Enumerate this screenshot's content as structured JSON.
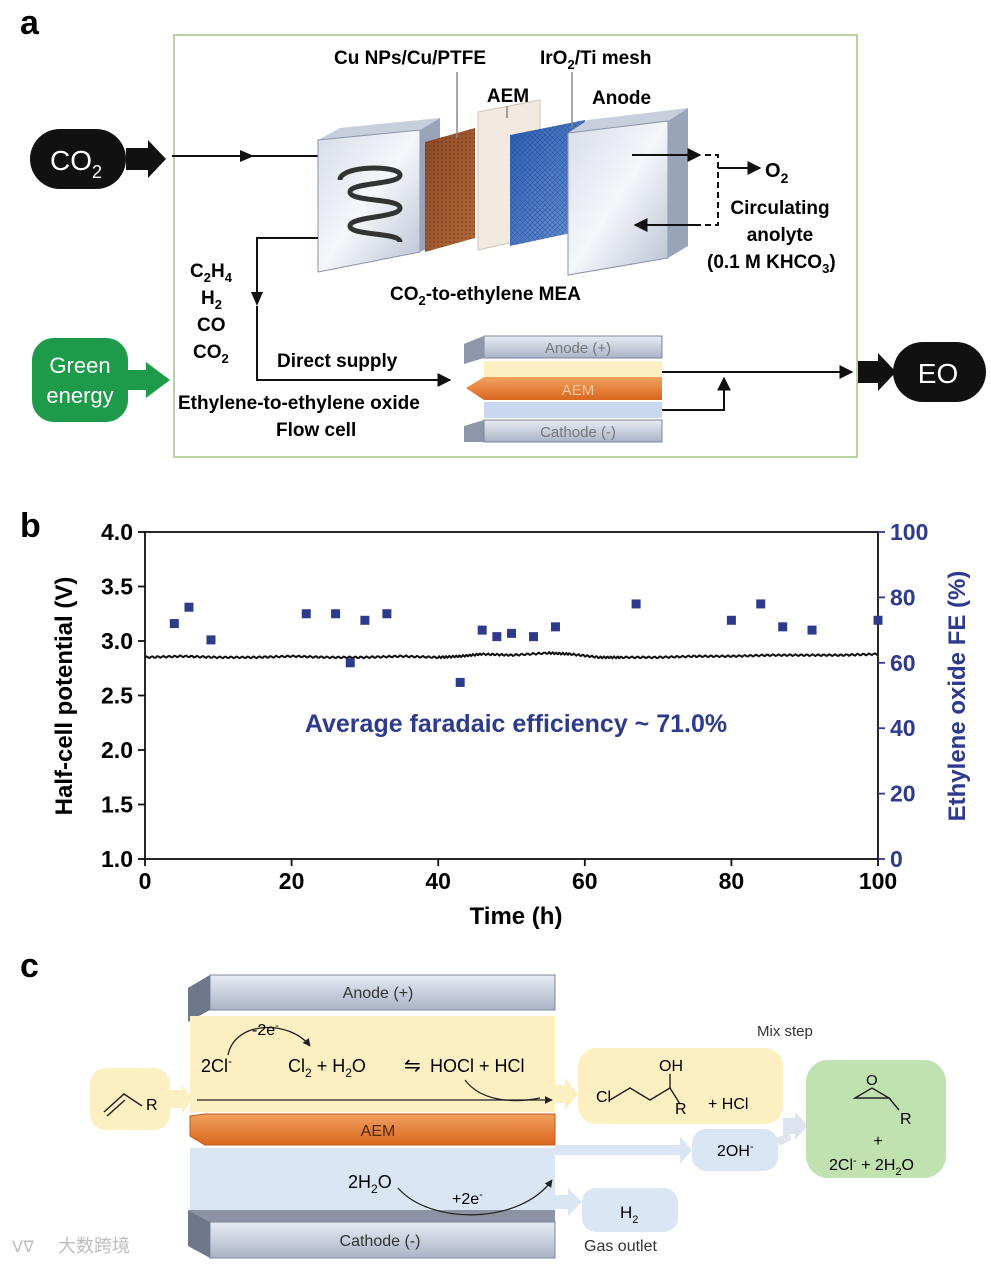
{
  "panel_a": {
    "letter": "a",
    "co2_pill": "CO",
    "co2_pill_sub": "2",
    "green_energy_line1": "Green",
    "green_energy_line2": "energy",
    "eo_pill": "EO",
    "cathode_label": "Cu NPs/Cu/PTFE",
    "aem_label": "AEM",
    "anode_mesh_label": "IrO",
    "anode_mesh_label_sub": "2",
    "anode_mesh_label_rest": "/Ti mesh",
    "anode_label": "Anode",
    "o2_label": "O",
    "o2_sub": "2",
    "circulating_1": "Circulating",
    "circulating_2": "anolyte",
    "circulating_3": "(0.1 M KHCO",
    "circulating_3_sub": "3",
    "circulating_3_end": ")",
    "mea_label": "CO",
    "mea_label_sub": "2",
    "mea_label_rest": "-to-ethylene MEA",
    "prod_c2h4_c": "C",
    "prod_c2h4_2": "2",
    "prod_c2h4_h": "H",
    "prod_c2h4_4": "4",
    "prod_h2": "H",
    "prod_h2_sub": "2",
    "prod_co": "CO",
    "prod_co2": "CO",
    "prod_co2_sub": "2",
    "direct_supply": "Direct supply",
    "flow_cell_1": "Ethylene-to-ethylene oxide",
    "flow_cell_2": "Flow cell",
    "fc_anode": "Anode (+)",
    "fc_aem": "AEM",
    "fc_cathode": "Cathode (-)"
  },
  "panel_b": {
    "letter": "b",
    "annotation": "Average faradaic efficiency ~ 71.0%"
  },
  "chart_data": {
    "type": "scatter",
    "title": "",
    "xlabel": "Time (h)",
    "ylabel": "Half-cell potential (V)",
    "y2label": "Ethylene oxide FE (%)",
    "xlim": [
      0,
      100
    ],
    "ylim": [
      1.0,
      4.0
    ],
    "y2lim": [
      0,
      100
    ],
    "x_ticks": [
      "0",
      "20",
      "40",
      "60",
      "80",
      "100"
    ],
    "y_ticks": [
      "1.0",
      "1.5",
      "2.0",
      "2.5",
      "3.0",
      "3.5",
      "4.0"
    ],
    "y2_ticks": [
      "0",
      "20",
      "40",
      "60",
      "80",
      "100"
    ],
    "series": [
      {
        "name": "Half-cell potential",
        "axis": "left",
        "style": "line",
        "color": "#111111",
        "x": [
          0,
          5,
          10,
          15,
          20,
          25,
          30,
          35,
          40,
          43,
          46,
          50,
          55,
          58,
          62,
          65,
          70,
          75,
          80,
          85,
          90,
          95,
          100
        ],
        "y": [
          2.85,
          2.86,
          2.85,
          2.85,
          2.86,
          2.85,
          2.85,
          2.86,
          2.85,
          2.86,
          2.88,
          2.87,
          2.89,
          2.88,
          2.85,
          2.85,
          2.85,
          2.86,
          2.86,
          2.87,
          2.87,
          2.87,
          2.88
        ]
      },
      {
        "name": "Ethylene oxide FE",
        "axis": "right",
        "style": "scatter",
        "color": "#2e3a8c",
        "x": [
          4,
          6,
          9,
          22,
          26,
          30,
          33,
          28,
          43,
          46,
          48,
          50,
          53,
          56,
          67,
          80,
          84,
          87,
          91,
          100
        ],
        "y": [
          72,
          77,
          67,
          75,
          75,
          73,
          75,
          60,
          54,
          70,
          68,
          69,
          68,
          71,
          78,
          73,
          78,
          71,
          70,
          73
        ]
      }
    ]
  },
  "panel_c": {
    "letter": "c",
    "anode": "Anode (+)",
    "aem": "AEM",
    "cathode": "Cathode (-)",
    "mix_step": "Mix step",
    "minus2e": "-2e",
    "minus2e_sup": "-",
    "cl_reactant": "2Cl",
    "cl_reactant_sup": "-",
    "cl2": "Cl",
    "cl2_sub": "2",
    "plus_h2o": " + H",
    "plus_h2o_sub": "2",
    "plus_h2o_o": "O",
    "eq_arrow": "⇋",
    "hocl": "HOCl + HCl",
    "alkene_r": "R",
    "cl_atom": "Cl",
    "oh": "OH",
    "chlorohydrin_r": "R",
    "plus_hcl": "+ HCl",
    "epoxide_o": "O",
    "epoxide_r": "R",
    "plus": "+",
    "products": "2Cl",
    "products_sup": "-",
    "products_rest": " + 2H",
    "products_sub": "2",
    "products_o": "O",
    "h2o_reactant": "2H",
    "h2o_reactant_sub": "2",
    "h2o_reactant_o": "O",
    "plus2e": "+2e",
    "plus2e_sup": "-",
    "oh_ion": "2OH",
    "oh_ion_sup": "-",
    "h2": "H",
    "h2_sub": "2",
    "gas_outlet": "Gas outlet"
  },
  "watermark": "大数跨境",
  "colors": {
    "panel_border": "#b9d3a3",
    "green_pill": "#1e9a4b",
    "fe_markers": "#2e3a8c",
    "fe_axis_text": "#2e3a8c",
    "aem_orange": "#e07a2c",
    "anode_yellow": "#fcefc2",
    "cathode_blue": "#dbe6f5"
  }
}
